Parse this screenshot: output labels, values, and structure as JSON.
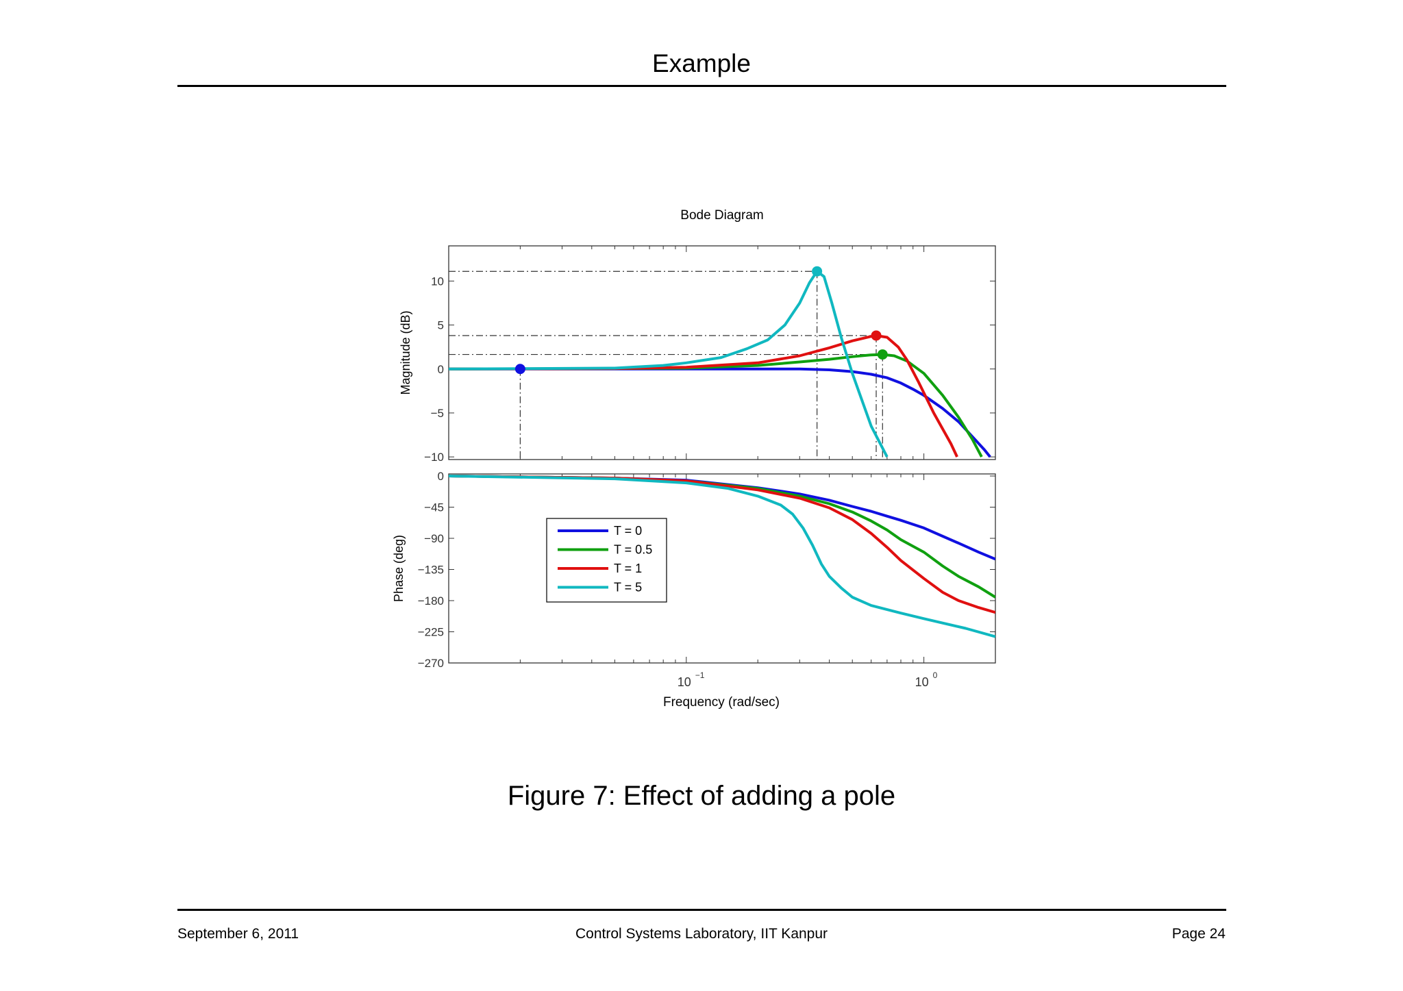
{
  "page": {
    "title": "Example",
    "caption": "Figure 7: Effect of adding a pole",
    "footer_left": "September 6, 2011",
    "footer_center": "Control Systems Laboratory, IIT Kanpur",
    "footer_right": "Page 24"
  },
  "chart_data": {
    "type": "line",
    "title": "Bode Diagram",
    "xlabel": "Frequency  (rad/sec)",
    "x_scale": "log",
    "xlim": [
      0.01,
      2
    ],
    "x_tick_labels": [
      {
        "value": 0.1,
        "base": "10",
        "exp": "−1"
      },
      {
        "value": 1,
        "base": "10",
        "exp": "0"
      }
    ],
    "legend_position": "inside phase axes, left",
    "grid": false,
    "series": [
      {
        "name": "T = 0",
        "color": "#1010e0",
        "magnitude": [
          [
            0.01,
            0
          ],
          [
            0.05,
            0
          ],
          [
            0.1,
            0
          ],
          [
            0.2,
            0
          ],
          [
            0.3,
            0
          ],
          [
            0.4,
            -0.1
          ],
          [
            0.5,
            -0.3
          ],
          [
            0.6,
            -0.6
          ],
          [
            0.7,
            -1.0
          ],
          [
            0.8,
            -1.6
          ],
          [
            0.9,
            -2.3
          ],
          [
            1.0,
            -3.0
          ],
          [
            1.2,
            -4.5
          ],
          [
            1.4,
            -6.0
          ],
          [
            1.6,
            -7.7
          ],
          [
            1.8,
            -9.2
          ],
          [
            1.9,
            -10
          ]
        ],
        "phase": [
          [
            0.01,
            0
          ],
          [
            0.05,
            -3
          ],
          [
            0.1,
            -6
          ],
          [
            0.2,
            -17
          ],
          [
            0.3,
            -26
          ],
          [
            0.4,
            -35
          ],
          [
            0.5,
            -44
          ],
          [
            0.6,
            -51
          ],
          [
            0.7,
            -58
          ],
          [
            0.8,
            -64
          ],
          [
            1.0,
            -75
          ],
          [
            1.2,
            -87
          ],
          [
            1.4,
            -97
          ],
          [
            1.7,
            -110
          ],
          [
            2.0,
            -120
          ]
        ],
        "marker": {
          "x": 0.02,
          "y": 0
        }
      },
      {
        "name": "T = 0.5",
        "color": "#10a010",
        "magnitude": [
          [
            0.01,
            0
          ],
          [
            0.05,
            0.05
          ],
          [
            0.1,
            0.1
          ],
          [
            0.2,
            0.4
          ],
          [
            0.3,
            0.8
          ],
          [
            0.4,
            1.1
          ],
          [
            0.5,
            1.4
          ],
          [
            0.6,
            1.6
          ],
          [
            0.67,
            1.65
          ],
          [
            0.75,
            1.5
          ],
          [
            0.85,
            0.9
          ],
          [
            1.0,
            -0.5
          ],
          [
            1.2,
            -3.0
          ],
          [
            1.4,
            -5.5
          ],
          [
            1.6,
            -8.0
          ],
          [
            1.75,
            -10
          ]
        ],
        "phase": [
          [
            0.01,
            0
          ],
          [
            0.05,
            -3
          ],
          [
            0.1,
            -7
          ],
          [
            0.2,
            -18
          ],
          [
            0.3,
            -29
          ],
          [
            0.4,
            -40
          ],
          [
            0.5,
            -52
          ],
          [
            0.6,
            -65
          ],
          [
            0.7,
            -78
          ],
          [
            0.8,
            -92
          ],
          [
            1.0,
            -110
          ],
          [
            1.2,
            -130
          ],
          [
            1.4,
            -145
          ],
          [
            1.7,
            -160
          ],
          [
            2.0,
            -175
          ]
        ],
        "marker": {
          "x": 0.67,
          "y": 1.65
        }
      },
      {
        "name": "T = 1",
        "color": "#e01010",
        "magnitude": [
          [
            0.01,
            0
          ],
          [
            0.05,
            0.05
          ],
          [
            0.1,
            0.2
          ],
          [
            0.2,
            0.7
          ],
          [
            0.3,
            1.5
          ],
          [
            0.4,
            2.4
          ],
          [
            0.5,
            3.2
          ],
          [
            0.6,
            3.7
          ],
          [
            0.63,
            3.8
          ],
          [
            0.7,
            3.6
          ],
          [
            0.78,
            2.5
          ],
          [
            0.85,
            1.0
          ],
          [
            0.95,
            -1.5
          ],
          [
            1.1,
            -5
          ],
          [
            1.3,
            -8.5
          ],
          [
            1.38,
            -10
          ]
        ],
        "phase": [
          [
            0.01,
            0
          ],
          [
            0.05,
            -3
          ],
          [
            0.1,
            -7
          ],
          [
            0.2,
            -20
          ],
          [
            0.3,
            -32
          ],
          [
            0.4,
            -46
          ],
          [
            0.5,
            -63
          ],
          [
            0.6,
            -83
          ],
          [
            0.7,
            -103
          ],
          [
            0.8,
            -122
          ],
          [
            1.0,
            -148
          ],
          [
            1.2,
            -168
          ],
          [
            1.4,
            -180
          ],
          [
            1.7,
            -190
          ],
          [
            2.0,
            -197
          ]
        ],
        "marker": {
          "x": 0.63,
          "y": 3.8
        }
      },
      {
        "name": "T = 5",
        "color": "#10b8c0",
        "magnitude": [
          [
            0.01,
            0
          ],
          [
            0.05,
            0.1
          ],
          [
            0.08,
            0.4
          ],
          [
            0.1,
            0.7
          ],
          [
            0.14,
            1.3
          ],
          [
            0.18,
            2.3
          ],
          [
            0.22,
            3.3
          ],
          [
            0.26,
            5.0
          ],
          [
            0.3,
            7.5
          ],
          [
            0.33,
            9.8
          ],
          [
            0.355,
            11.1
          ],
          [
            0.38,
            10.5
          ],
          [
            0.41,
            7.5
          ],
          [
            0.45,
            3.5
          ],
          [
            0.5,
            -0.5
          ],
          [
            0.6,
            -6.5
          ],
          [
            0.7,
            -10
          ]
        ],
        "phase": [
          [
            0.01,
            0
          ],
          [
            0.05,
            -4
          ],
          [
            0.1,
            -10
          ],
          [
            0.15,
            -18
          ],
          [
            0.2,
            -29
          ],
          [
            0.25,
            -42
          ],
          [
            0.28,
            -55
          ],
          [
            0.31,
            -75
          ],
          [
            0.34,
            -100
          ],
          [
            0.37,
            -127
          ],
          [
            0.4,
            -145
          ],
          [
            0.45,
            -162
          ],
          [
            0.5,
            -175
          ],
          [
            0.6,
            -187
          ],
          [
            0.8,
            -198
          ],
          [
            1.0,
            -206
          ],
          [
            1.5,
            -220
          ],
          [
            2.0,
            -232
          ]
        ],
        "marker": {
          "x": 0.355,
          "y": 11.1
        }
      }
    ],
    "magnitude_axis": {
      "label": "Magnitude (dB)",
      "ylim": [
        -10.3,
        14
      ],
      "ticks": [
        10,
        5,
        0,
        -5,
        -10
      ],
      "tick_labels": [
        "10",
        "5",
        "0",
        "−5",
        "−10"
      ]
    },
    "phase_axis": {
      "label": "Phase (deg)",
      "ylim": [
        -270,
        3
      ],
      "ticks": [
        0,
        -45,
        -90,
        -135,
        -180,
        -225,
        -270
      ],
      "tick_labels": [
        "0",
        "−45",
        "−90",
        "−135",
        "−180",
        "−225",
        "−270"
      ]
    }
  }
}
